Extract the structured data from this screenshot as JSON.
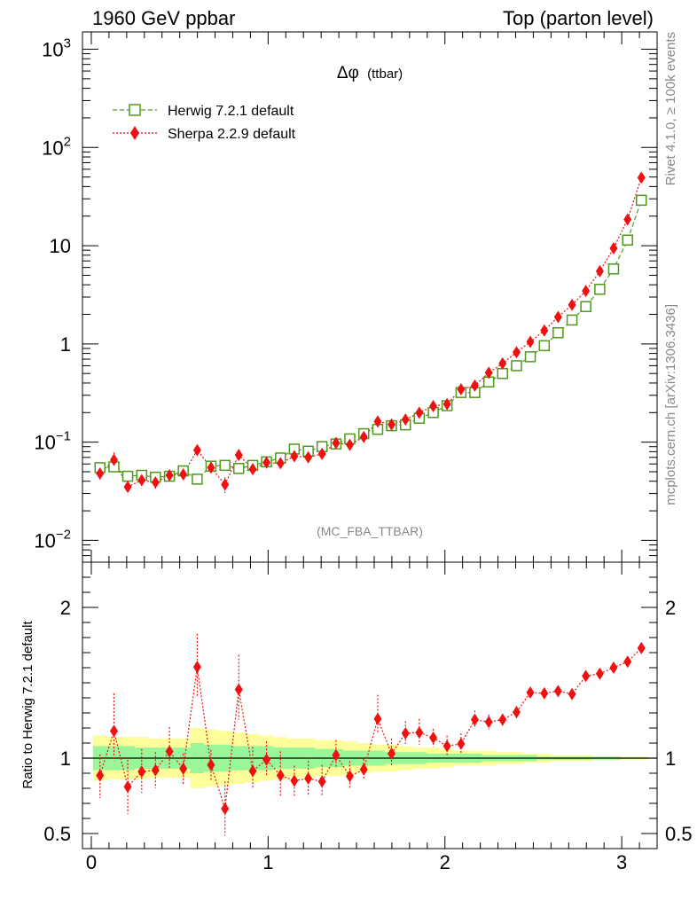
{
  "header": {
    "left": "1960 GeV ppbar",
    "right": "Top (parton level)"
  },
  "side_labels": {
    "rivet": "Rivet 4.1.0, ≥ 100k events",
    "mcplots": "mcplots.cern.ch [arXiv:1306.3436]"
  },
  "chart_data": [
    {
      "type": "scatter",
      "panel": "main",
      "title": "Δφ (ttbar)",
      "title_symbol": "Δφ",
      "title_suffix": "(ttbar)",
      "watermark": "(MC_FBA_TTBAR)",
      "xlim": [
        -0.05,
        3.2
      ],
      "ylim": [
        0.006,
        1500
      ],
      "yscale": "log",
      "ytick_labels": [
        {
          "value": 0.01,
          "base": "10",
          "exp": "−2"
        },
        {
          "value": 0.1,
          "base": "10",
          "exp": "−1"
        },
        {
          "value": 1,
          "base": "1",
          "exp": ""
        },
        {
          "value": 10,
          "base": "10",
          "exp": ""
        },
        {
          "value": 100,
          "base": "10",
          "exp": "2"
        },
        {
          "value": 1000,
          "base": "10",
          "exp": "3"
        }
      ],
      "legend_position": "top-left",
      "x": [
        0.049,
        0.128,
        0.206,
        0.285,
        0.363,
        0.442,
        0.52,
        0.599,
        0.677,
        0.756,
        0.834,
        0.913,
        0.991,
        1.07,
        1.148,
        1.227,
        1.305,
        1.384,
        1.462,
        1.541,
        1.62,
        1.698,
        1.777,
        1.855,
        1.934,
        2.012,
        2.091,
        2.169,
        2.248,
        2.326,
        2.405,
        2.483,
        2.562,
        2.64,
        2.719,
        2.797,
        2.876,
        2.954,
        3.033,
        3.111
      ],
      "series": [
        {
          "name": "Herwig 7.2.1 default",
          "color": "#4d9a1a",
          "marker": "open-square",
          "line": "dashed",
          "values": [
            0.055,
            0.056,
            0.045,
            0.046,
            0.044,
            0.045,
            0.051,
            0.042,
            0.057,
            0.058,
            0.054,
            0.058,
            0.063,
            0.069,
            0.085,
            0.081,
            0.09,
            0.096,
            0.108,
            0.122,
            0.135,
            0.147,
            0.15,
            0.175,
            0.2,
            0.235,
            0.32,
            0.32,
            0.41,
            0.5,
            0.6,
            0.74,
            0.96,
            1.3,
            1.75,
            2.4,
            3.6,
            5.8,
            11.4,
            29.0
          ]
        },
        {
          "name": "Sherpa 2.2.9 default",
          "color": "#ee1111",
          "marker": "filled-diamond",
          "line": "dotted",
          "values": [
            0.048,
            0.066,
            0.035,
            0.041,
            0.039,
            0.046,
            0.047,
            0.083,
            0.055,
            0.037,
            0.074,
            0.053,
            0.062,
            0.061,
            0.072,
            0.07,
            0.076,
            0.098,
            0.094,
            0.113,
            0.162,
            0.151,
            0.17,
            0.199,
            0.233,
            0.244,
            0.345,
            0.376,
            0.509,
            0.633,
            0.822,
            1.05,
            1.37,
            1.88,
            2.5,
            3.46,
            5.5,
            9.4,
            18.5,
            49.3
          ],
          "rel_errors": [
            0.16,
            0.19,
            0.17,
            0.17,
            0.14,
            0.09,
            0.12,
            0.11,
            0.1,
            0.18,
            0.09,
            0.12,
            0.1,
            0.12,
            0.11,
            0.12,
            0.12,
            0.09,
            0.1,
            0.07,
            0.08,
            0.07,
            0.06,
            0.06,
            0.06,
            0.05,
            0.05,
            0.05,
            0.03,
            0.03,
            0.03,
            0.02,
            0.02,
            0.02,
            0.02,
            0.01,
            0.01,
            0.01,
            0.01,
            0.01
          ]
        }
      ]
    },
    {
      "type": "scatter",
      "panel": "ratio",
      "ylabel": "Ratio to Herwig 7.2.1 default",
      "xlim": [
        -0.05,
        3.2
      ],
      "ylim": [
        0.4,
        2.3
      ],
      "reference_line": 1,
      "xticks": [
        0,
        1,
        2,
        3
      ],
      "xtick_labels": [
        "0",
        "1",
        "2",
        "3"
      ],
      "yticks": [
        0.5,
        1,
        2
      ],
      "ytick_labels": [
        "0.5",
        "1",
        "2"
      ],
      "band_colors": {
        "outer": "#fdfd9a",
        "inner": "#99f699"
      },
      "band_outer_halfwidth": [
        0.15,
        0.14,
        0.14,
        0.14,
        0.13,
        0.13,
        0.13,
        0.2,
        0.19,
        0.18,
        0.17,
        0.16,
        0.15,
        0.14,
        0.13,
        0.13,
        0.12,
        0.12,
        0.11,
        0.1,
        0.09,
        0.09,
        0.08,
        0.07,
        0.07,
        0.06,
        0.05,
        0.05,
        0.05,
        0.04,
        0.04,
        0.03,
        0.03,
        0.02,
        0.02,
        0.02,
        0.01,
        0.01,
        0.01,
        0.01
      ],
      "band_inner_halfwidth": [
        0.08,
        0.08,
        0.08,
        0.07,
        0.07,
        0.07,
        0.07,
        0.1,
        0.09,
        0.09,
        0.08,
        0.08,
        0.08,
        0.07,
        0.07,
        0.07,
        0.06,
        0.06,
        0.05,
        0.05,
        0.05,
        0.04,
        0.04,
        0.04,
        0.03,
        0.03,
        0.03,
        0.03,
        0.02,
        0.02,
        0.02,
        0.02,
        0.01,
        0.01,
        0.01,
        0.01,
        0.01,
        0.01,
        0.005,
        0.005
      ],
      "series": [
        {
          "name": "Sherpa 2.2.9 default",
          "color": "#ee1111",
          "values": [
            0.885,
            1.18,
            0.81,
            0.91,
            0.92,
            1.045,
            0.93,
            1.605,
            0.955,
            0.665,
            1.455,
            0.915,
            0.99,
            0.885,
            0.85,
            0.865,
            0.845,
            1.02,
            0.88,
            0.925,
            1.26,
            1.03,
            1.165,
            1.17,
            1.135,
            1.08,
            1.095,
            1.255,
            1.24,
            1.255,
            1.305,
            1.435,
            1.43,
            1.445,
            1.425,
            1.545,
            1.56,
            1.6,
            1.64,
            1.73
          ],
          "err_plus": [
            0.14,
            0.25,
            0.18,
            0.15,
            0.12,
            0.16,
            0.1,
            0.22,
            0.1,
            0.18,
            0.23,
            0.16,
            0.12,
            0.16,
            0.1,
            0.14,
            0.11,
            0.1,
            0.1,
            0.07,
            0.16,
            0.1,
            0.08,
            0.09,
            0.06,
            0.07,
            0.07,
            0.06,
            0.05,
            0.04,
            0.04,
            0.03,
            0.03,
            0.03,
            0.03,
            0.02,
            0.02,
            0.02,
            0.02,
            0.02
          ],
          "err_minus": [
            0.15,
            0.2,
            0.18,
            0.14,
            0.12,
            0.12,
            0.1,
            0.2,
            0.1,
            0.18,
            0.2,
            0.12,
            0.11,
            0.14,
            0.1,
            0.12,
            0.1,
            0.09,
            0.08,
            0.07,
            0.1,
            0.08,
            0.07,
            0.08,
            0.06,
            0.06,
            0.06,
            0.06,
            0.05,
            0.04,
            0.04,
            0.03,
            0.03,
            0.03,
            0.03,
            0.02,
            0.02,
            0.02,
            0.02,
            0.02
          ]
        }
      ]
    }
  ]
}
